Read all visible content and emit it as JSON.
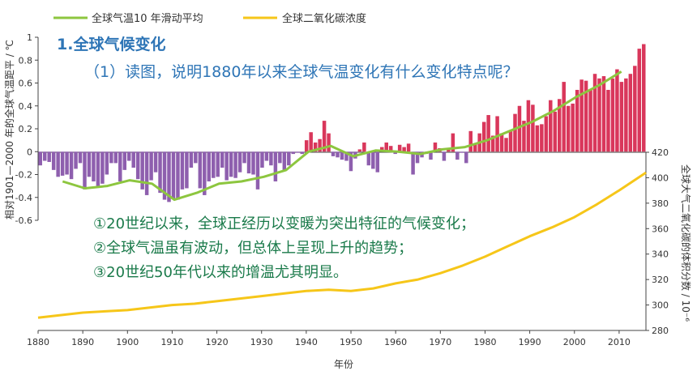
{
  "overlay": {
    "section_title": "1.全球气候变化",
    "question": "（1）读图，说明1880年以来全球气温变化有什么变化特点呢？",
    "answers": [
      "①20世纪以来，全球正经历以变暖为突出特征的气候变化；",
      "②全球气温虽有波动，但总体上呈现上升的趋势；",
      "③20世纪50年代以来的增温尤其明显。"
    ]
  },
  "chart_data": {
    "type": "bar",
    "legend": [
      {
        "name": "全球气温10 年滑动平均",
        "color": "#8dc63f"
      },
      {
        "name": "全球二氧化碳浓度",
        "color": "#f6c619"
      }
    ],
    "legend_position": "top-left",
    "xlabel": "年份",
    "ylabel_left": "相对1901—2000 年的全球气温距平 / ℃",
    "ylabel_right": "全球大气二氧化碳的体积分数 / 10⁻⁶",
    "x_ticks": [
      1880,
      1890,
      1900,
      1910,
      1920,
      1930,
      1940,
      1950,
      1960,
      1970,
      1980,
      1990,
      2000,
      2010
    ],
    "y_left_ticks": [
      "1",
      "0.8",
      "0.6",
      "0.4",
      "0.2",
      "0",
      "-0.2",
      "-0.4",
      "-0.6"
    ],
    "y_left_range": [
      -0.6,
      1.0
    ],
    "y_right_ticks": [
      "420",
      "400",
      "380",
      "360",
      "340",
      "320",
      "300",
      "280"
    ],
    "y_right_range": [
      280,
      420
    ],
    "x_range": [
      1880,
      2016
    ],
    "bar_colors": {
      "positive": "#d9375b",
      "negative": "#8e5fae"
    },
    "anomaly": {
      "years": [
        1880,
        1881,
        1882,
        1883,
        1884,
        1885,
        1886,
        1887,
        1888,
        1889,
        1890,
        1891,
        1892,
        1893,
        1894,
        1895,
        1896,
        1897,
        1898,
        1899,
        1900,
        1901,
        1902,
        1903,
        1904,
        1905,
        1906,
        1907,
        1908,
        1909,
        1910,
        1911,
        1912,
        1913,
        1914,
        1915,
        1916,
        1917,
        1918,
        1919,
        1920,
        1921,
        1922,
        1923,
        1924,
        1925,
        1926,
        1927,
        1928,
        1929,
        1930,
        1931,
        1932,
        1933,
        1934,
        1935,
        1936,
        1937,
        1938,
        1939,
        1940,
        1941,
        1942,
        1943,
        1944,
        1945,
        1946,
        1947,
        1948,
        1949,
        1950,
        1951,
        1952,
        1953,
        1954,
        1955,
        1956,
        1957,
        1958,
        1959,
        1960,
        1961,
        1962,
        1963,
        1964,
        1965,
        1966,
        1967,
        1968,
        1969,
        1970,
        1971,
        1972,
        1973,
        1974,
        1975,
        1976,
        1977,
        1978,
        1979,
        1980,
        1981,
        1982,
        1983,
        1984,
        1985,
        1986,
        1987,
        1988,
        1989,
        1990,
        1991,
        1992,
        1993,
        1994,
        1995,
        1996,
        1997,
        1998,
        1999,
        2000,
        2001,
        2002,
        2003,
        2004,
        2005,
        2006,
        2007,
        2008,
        2009,
        2010,
        2011,
        2012,
        2013,
        2014,
        2015,
        2016
      ],
      "values": [
        -0.12,
        -0.08,
        -0.09,
        -0.16,
        -0.22,
        -0.21,
        -0.2,
        -0.24,
        -0.15,
        -0.1,
        -0.33,
        -0.22,
        -0.26,
        -0.3,
        -0.28,
        -0.2,
        -0.1,
        -0.1,
        -0.26,
        -0.16,
        -0.08,
        -0.14,
        -0.24,
        -0.33,
        -0.38,
        -0.25,
        -0.18,
        -0.36,
        -0.42,
        -0.44,
        -0.41,
        -0.42,
        -0.33,
        -0.32,
        -0.14,
        -0.1,
        -0.32,
        -0.38,
        -0.26,
        -0.23,
        -0.22,
        -0.14,
        -0.25,
        -0.22,
        -0.23,
        -0.18,
        -0.1,
        -0.19,
        -0.2,
        -0.33,
        -0.14,
        -0.08,
        -0.12,
        -0.26,
        -0.1,
        -0.16,
        -0.12,
        -0.02,
        -0.01,
        -0.02,
        0.1,
        0.17,
        0.08,
        0.11,
        0.27,
        0.16,
        -0.04,
        -0.05,
        -0.07,
        -0.08,
        -0.17,
        -0.06,
        0.02,
        0.08,
        -0.12,
        -0.15,
        -0.18,
        0.04,
        0.08,
        0.05,
        -0.02,
        0.06,
        0.04,
        0.07,
        -0.2,
        -0.1,
        -0.05,
        -0.02,
        -0.07,
        0.08,
        0.03,
        -0.08,
        0.02,
        0.16,
        -0.07,
        -0.01,
        -0.1,
        0.18,
        0.07,
        0.16,
        0.26,
        0.32,
        0.14,
        0.31,
        0.16,
        0.12,
        0.18,
        0.33,
        0.4,
        0.27,
        0.45,
        0.41,
        0.23,
        0.24,
        0.31,
        0.45,
        0.35,
        0.46,
        0.61,
        0.4,
        0.42,
        0.54,
        0.63,
        0.62,
        0.54,
        0.68,
        0.64,
        0.66,
        0.54,
        0.64,
        0.72,
        0.61,
        0.64,
        0.68,
        0.75,
        0.9,
        0.94
      ]
    },
    "smoothed": {
      "years": [
        1885,
        1890,
        1895,
        1900,
        1905,
        1910,
        1915,
        1920,
        1925,
        1930,
        1935,
        1940,
        1945,
        1950,
        1955,
        1960,
        1965,
        1970,
        1975,
        1980,
        1985,
        1990,
        1995,
        2000,
        2005,
        2010
      ],
      "values": [
        -0.26,
        -0.32,
        -0.3,
        -0.25,
        -0.28,
        -0.42,
        -0.36,
        -0.28,
        -0.26,
        -0.22,
        -0.16,
        0.0,
        0.05,
        -0.04,
        0.01,
        0.0,
        -0.02,
        0.02,
        0.04,
        0.1,
        0.18,
        0.26,
        0.36,
        0.48,
        0.58,
        0.7
      ]
    },
    "co2": {
      "years": [
        1880,
        1885,
        1890,
        1895,
        1900,
        1905,
        1910,
        1915,
        1920,
        1925,
        1930,
        1935,
        1940,
        1945,
        1950,
        1955,
        1960,
        1965,
        1970,
        1975,
        1980,
        1985,
        1990,
        1995,
        2000,
        2005,
        2010,
        2016
      ],
      "values": [
        290,
        292,
        294,
        295,
        296,
        298,
        300,
        301,
        303,
        305,
        307,
        309,
        311,
        312,
        311,
        313,
        317,
        320,
        325,
        331,
        338,
        346,
        354,
        361,
        369,
        379,
        390,
        404
      ]
    }
  }
}
